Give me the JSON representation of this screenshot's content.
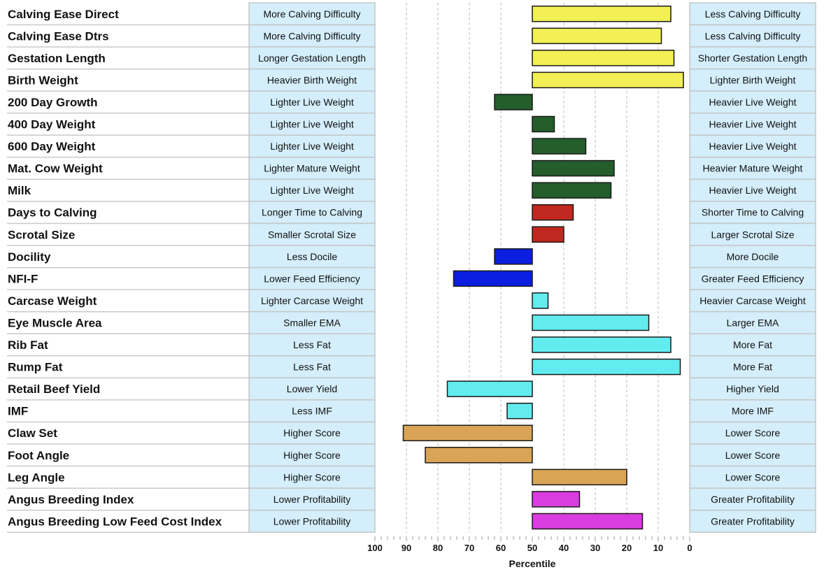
{
  "chart_data": {
    "type": "bar",
    "orientation": "horizontal",
    "xlabel": "Percentile",
    "xlim": [
      100,
      0
    ],
    "baseline": 50,
    "ticks": [
      100,
      90,
      80,
      70,
      60,
      50,
      40,
      30,
      20,
      10,
      0
    ],
    "tick_labels": [
      "100",
      "90",
      "80",
      "70",
      "60",
      "50",
      "40",
      "30",
      "20",
      "10",
      "0"
    ],
    "gridlines": [
      90,
      80,
      70,
      60,
      40,
      30,
      20,
      10
    ],
    "colors": {
      "calving": "#f2f054",
      "growth": "#235e2b",
      "fertility": "#c1281f",
      "efficiency": "#0a1fe0",
      "carcase": "#62ecef",
      "structure": "#d9a455",
      "index": "#d93ce0",
      "desc_fill": "#d4eefb",
      "desc_border": "#c6c6c6"
    },
    "rows": [
      {
        "trait": "Calving Ease Direct",
        "low": "More Calving Difficulty",
        "high": "Less Calving Difficulty",
        "value": 6,
        "group": "calving"
      },
      {
        "trait": "Calving Ease Dtrs",
        "low": "More Calving Difficulty",
        "high": "Less Calving Difficulty",
        "value": 9,
        "group": "calving"
      },
      {
        "trait": "Gestation Length",
        "low": "Longer Gestation Length",
        "high": "Shorter Gestation Length",
        "value": 5,
        "group": "calving"
      },
      {
        "trait": "Birth Weight",
        "low": "Heavier Birth Weight",
        "high": "Lighter Birth Weight",
        "value": 2,
        "group": "calving"
      },
      {
        "trait": "200 Day Growth",
        "low": "Lighter Live Weight",
        "high": "Heavier Live Weight",
        "value": 62,
        "group": "growth"
      },
      {
        "trait": "400 Day Weight",
        "low": "Lighter Live Weight",
        "high": "Heavier Live Weight",
        "value": 43,
        "group": "growth"
      },
      {
        "trait": "600 Day Weight",
        "low": "Lighter Live Weight",
        "high": "Heavier Live Weight",
        "value": 33,
        "group": "growth"
      },
      {
        "trait": "Mat. Cow Weight",
        "low": "Lighter Mature Weight",
        "high": "Heavier Mature Weight",
        "value": 24,
        "group": "growth"
      },
      {
        "trait": "Milk",
        "low": "Lighter Live Weight",
        "high": "Heavier Live Weight",
        "value": 25,
        "group": "growth"
      },
      {
        "trait": "Days to Calving",
        "low": "Longer Time to Calving",
        "high": "Shorter Time to Calving",
        "value": 37,
        "group": "fertility"
      },
      {
        "trait": "Scrotal Size",
        "low": "Smaller Scrotal Size",
        "high": "Larger Scrotal Size",
        "value": 40,
        "group": "fertility"
      },
      {
        "trait": "Docility",
        "low": "Less Docile",
        "high": "More Docile",
        "value": 62,
        "group": "efficiency"
      },
      {
        "trait": "NFI-F",
        "low": "Lower Feed Efficiency",
        "high": "Greater Feed Efficiency",
        "value": 75,
        "group": "efficiency"
      },
      {
        "trait": "Carcase Weight",
        "low": "Lighter Carcase Weight",
        "high": "Heavier Carcase Weight",
        "value": 45,
        "group": "carcase"
      },
      {
        "trait": "Eye Muscle Area",
        "low": "Smaller EMA",
        "high": "Larger EMA",
        "value": 13,
        "group": "carcase"
      },
      {
        "trait": "Rib Fat",
        "low": "Less Fat",
        "high": "More Fat",
        "value": 6,
        "group": "carcase"
      },
      {
        "trait": "Rump Fat",
        "low": "Less Fat",
        "high": "More Fat",
        "value": 3,
        "group": "carcase"
      },
      {
        "trait": "Retail Beef Yield",
        "low": "Lower Yield",
        "high": "Higher Yield",
        "value": 77,
        "group": "carcase"
      },
      {
        "trait": "IMF",
        "low": "Less IMF",
        "high": "More IMF",
        "value": 58,
        "group": "carcase"
      },
      {
        "trait": "Claw Set",
        "low": "Higher Score",
        "high": "Lower Score",
        "value": 91,
        "group": "structure"
      },
      {
        "trait": "Foot Angle",
        "low": "Higher Score",
        "high": "Lower Score",
        "value": 84,
        "group": "structure"
      },
      {
        "trait": "Leg Angle",
        "low": "Higher Score",
        "high": "Lower Score",
        "value": 20,
        "group": "structure"
      },
      {
        "trait": "Angus Breeding Index",
        "low": "Lower Profitability",
        "high": "Greater Profitability",
        "value": 35,
        "group": "index"
      },
      {
        "trait": "Angus Breeding Low Feed Cost Index",
        "low": "Lower Profitability",
        "high": "Greater Profitability",
        "value": 15,
        "group": "index"
      }
    ]
  }
}
